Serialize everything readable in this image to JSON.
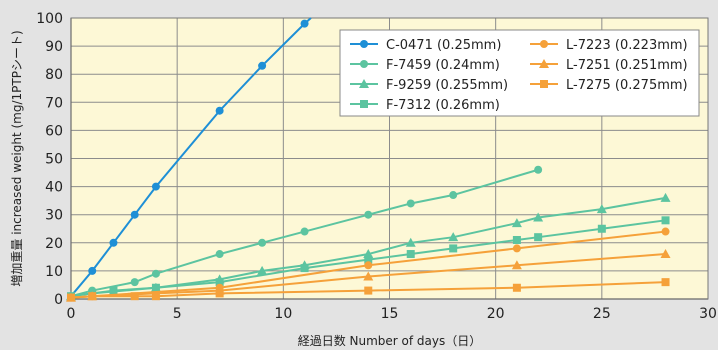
{
  "chart_data": {
    "type": "line",
    "xlabel": "経過日数 Number of days（日）",
    "ylabel": "増加重量 increased weight (mg/1PTPシート)",
    "xlim": [
      0,
      30
    ],
    "ylim": [
      0,
      100
    ],
    "xticks": [
      "0",
      "5",
      "10",
      "15",
      "20",
      "25",
      "30"
    ],
    "yticks": [
      "0",
      "10",
      "20",
      "30",
      "40",
      "50",
      "60",
      "70",
      "80",
      "90",
      "100"
    ],
    "grid": true,
    "legend_position": "top-right",
    "colors": {
      "background": "#e3e3e3",
      "plot_area": "#fdf8d6",
      "grid": "#8c8c8c",
      "blue": "#1e8fd6",
      "teal": "#5cc4a0",
      "orange": "#f5a13a"
    },
    "series": [
      {
        "name": "C-0471 (0.25mm)",
        "color": "#1e8fd6",
        "marker": "circle",
        "x": [
          0,
          1,
          2,
          3,
          4,
          7,
          9,
          11
        ],
        "y": [
          1,
          10,
          20,
          30,
          40,
          67,
          83,
          98
        ],
        "extend_to": [
          11.3,
          100
        ]
      },
      {
        "name": "F-7459 (0.24mm)",
        "color": "#5cc4a0",
        "marker": "circle",
        "x": [
          0,
          1,
          3,
          4,
          7,
          9,
          11,
          14,
          16,
          18,
          22
        ],
        "y": [
          1,
          3,
          6,
          9,
          16,
          20,
          24,
          30,
          34,
          37,
          46
        ]
      },
      {
        "name": "F-9259 (0.255mm)",
        "color": "#5cc4a0",
        "marker": "triangle",
        "x": [
          0,
          1,
          4,
          7,
          9,
          11,
          14,
          16,
          18,
          21,
          22,
          25,
          28
        ],
        "y": [
          1,
          2,
          4,
          7,
          10,
          12,
          16,
          20,
          22,
          27,
          29,
          32,
          36
        ]
      },
      {
        "name": "F-7312 (0.26mm)",
        "color": "#5cc4a0",
        "marker": "square",
        "x": [
          0,
          1,
          2,
          4,
          7,
          11,
          14,
          16,
          18,
          21,
          22,
          25,
          28
        ],
        "y": [
          1,
          2,
          3,
          4,
          6,
          11,
          14,
          16,
          18,
          21,
          22,
          25,
          28
        ]
      },
      {
        "name": "L-7223 (0.223mm)",
        "color": "#f5a13a",
        "marker": "circle",
        "x": [
          0,
          1,
          7,
          14,
          21,
          28
        ],
        "y": [
          0.5,
          1,
          4,
          12,
          18,
          24
        ]
      },
      {
        "name": "L-7251 (0.251mm)",
        "color": "#f5a13a",
        "marker": "triangle",
        "x": [
          0,
          1,
          7,
          14,
          21,
          28
        ],
        "y": [
          0.5,
          1,
          3,
          8,
          12,
          16
        ]
      },
      {
        "name": "L-7275 (0.275mm)",
        "color": "#f5a13a",
        "marker": "square",
        "x": [
          0,
          1,
          3,
          4,
          7,
          14,
          21,
          28
        ],
        "y": [
          0.5,
          1,
          1,
          1,
          2,
          3,
          4,
          6
        ]
      }
    ]
  }
}
